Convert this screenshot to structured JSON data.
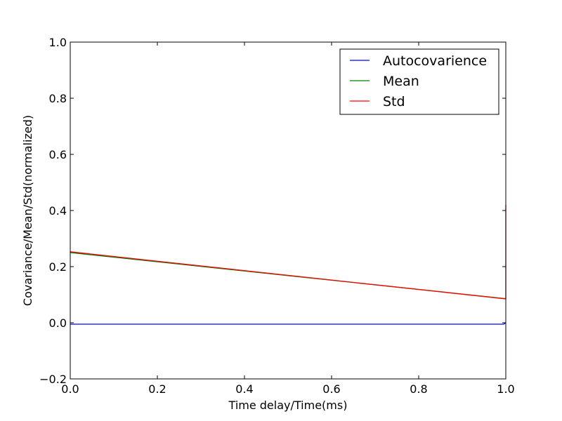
{
  "chart_data": {
    "type": "line",
    "title": "",
    "xlabel": "Time delay/Time(ms)",
    "ylabel": "Covariance/Mean/Std(normalized)",
    "xlim": [
      0.0,
      1.0
    ],
    "ylim": [
      -0.2,
      1.0
    ],
    "x_ticks": [
      "0.0",
      "0.2",
      "0.4",
      "0.6",
      "0.8",
      "1.0"
    ],
    "y_ticks": [
      "−0.2",
      "0.0",
      "0.2",
      "0.4",
      "0.6",
      "0.8",
      "1.0"
    ],
    "x_tick_values": [
      0.0,
      0.2,
      0.4,
      0.6,
      0.8,
      1.0
    ],
    "y_tick_values": [
      -0.2,
      0.0,
      0.2,
      0.4,
      0.6,
      0.8,
      1.0
    ],
    "grid": false,
    "legend_position": "top-right",
    "series": [
      {
        "name": "Autocovarience",
        "color": "#0000ff",
        "x": [
          0.0,
          0.5,
          0.995,
          1.0
        ],
        "y": [
          -0.005,
          -0.005,
          -0.005,
          0.0
        ]
      },
      {
        "name": "Mean",
        "color": "#008000",
        "x": [
          0.0,
          0.25,
          0.5,
          0.75,
          1.0
        ],
        "y": [
          0.25,
          0.209,
          0.168,
          0.127,
          0.086
        ]
      },
      {
        "name": "Std",
        "color": "#ff0000",
        "x": [
          0.0,
          0.25,
          0.5,
          0.75,
          1.0,
          1.0
        ],
        "y": [
          0.253,
          0.211,
          0.169,
          0.127,
          0.085,
          0.42
        ]
      }
    ]
  }
}
